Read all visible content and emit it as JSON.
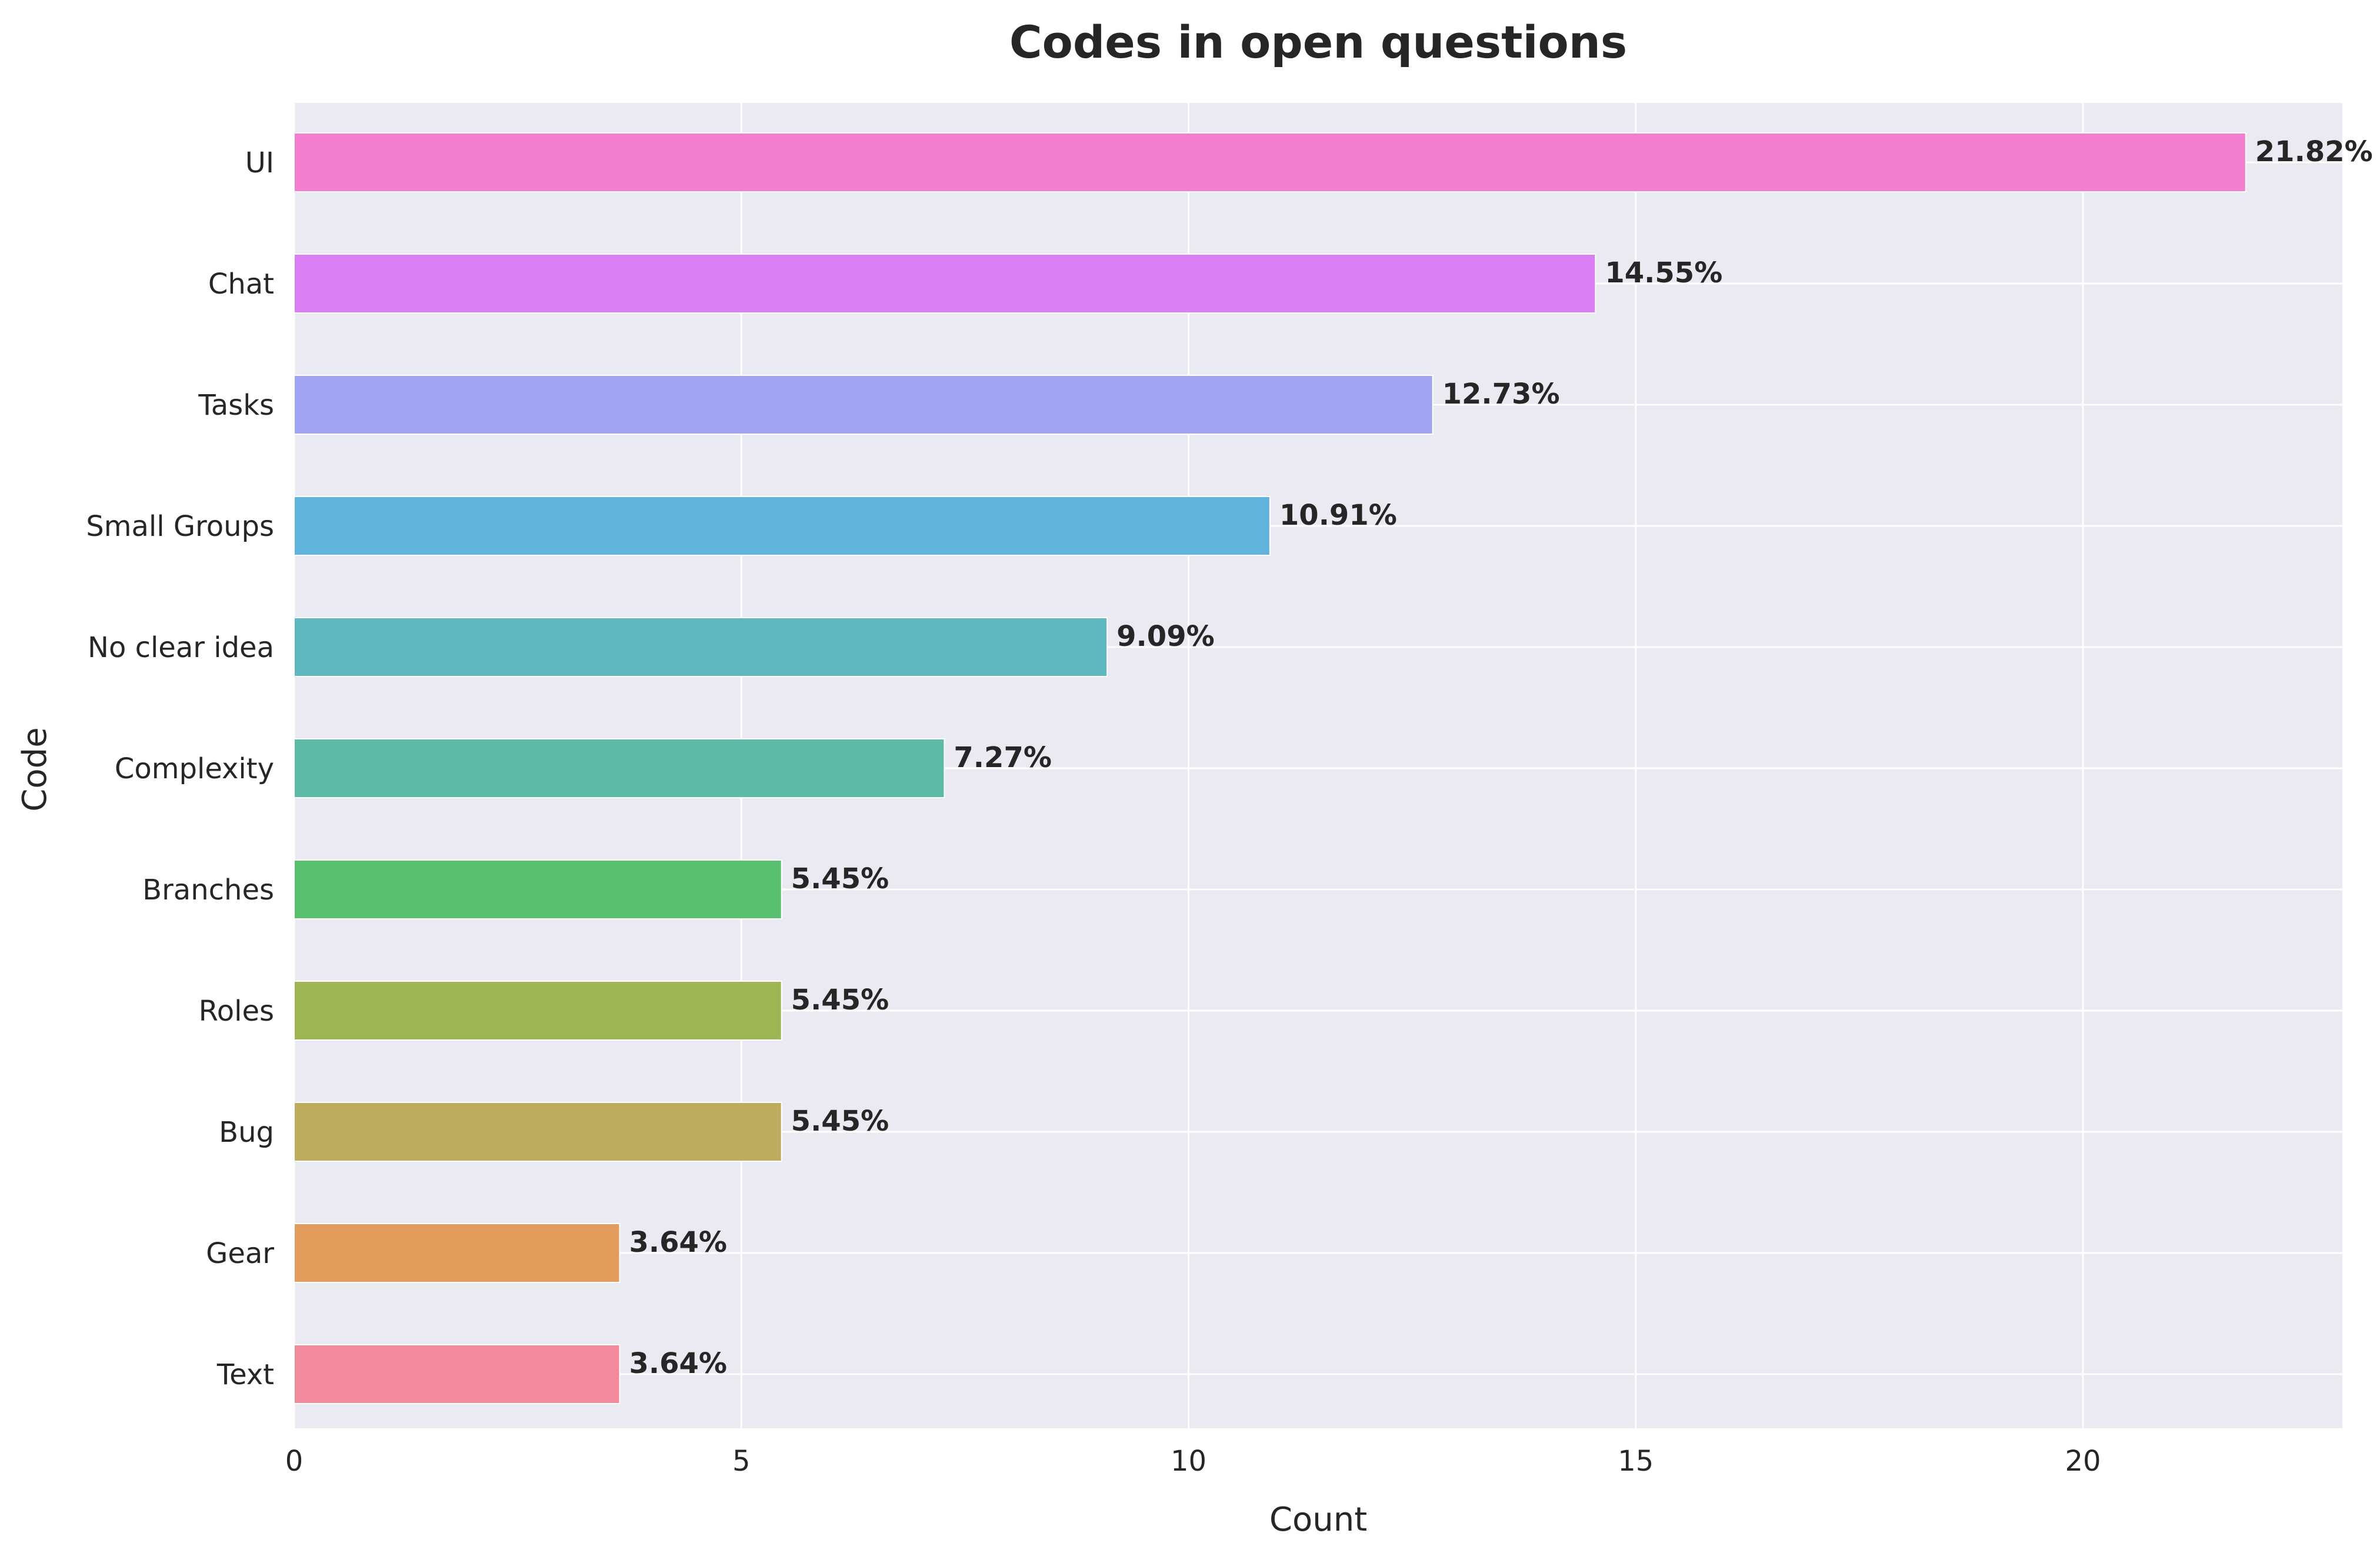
{
  "chart_data": {
    "type": "bar",
    "orientation": "horizontal",
    "title": "Codes in open questions",
    "xlabel": "Count",
    "ylabel": "Code",
    "xlim": [
      0,
      22.9
    ],
    "xticks": [
      0,
      5,
      10,
      15,
      20
    ],
    "grid": true,
    "categories": [
      "UI",
      "Chat",
      "Tasks",
      "Small Groups",
      "No clear idea",
      "Complexity",
      "Branches",
      "Roles",
      "Bug",
      "Gear",
      "Text"
    ],
    "values": [
      21.82,
      14.55,
      12.73,
      10.91,
      9.09,
      7.27,
      5.45,
      5.45,
      5.45,
      3.64,
      3.64
    ],
    "labels": [
      "21.82%",
      "14.55%",
      "12.73%",
      "10.91%",
      "9.09%",
      "7.27%",
      "5.45%",
      "5.45%",
      "5.45%",
      "3.64%",
      "3.64%"
    ],
    "colors": [
      "#f37ecf",
      "#da7ef3",
      "#a0a4f4",
      "#5fb3dd",
      "#5fb8bf",
      "#5cbaa7",
      "#58bf6f",
      "#9eb553",
      "#bdac5d",
      "#e29d5c",
      "#f38a9c"
    ]
  }
}
